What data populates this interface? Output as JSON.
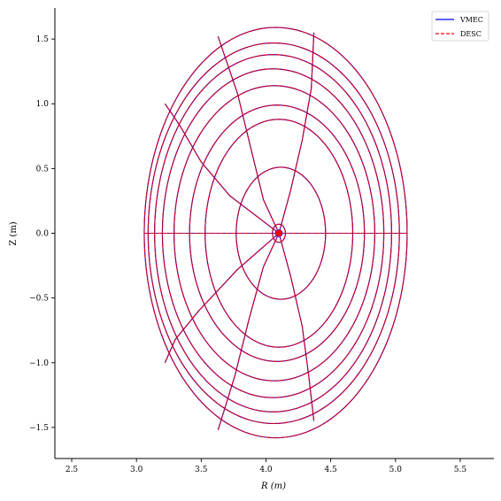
{
  "chart_data": {
    "type": "line",
    "title": "",
    "xlabel": "R (m)",
    "ylabel": "Z (m)",
    "xlim": [
      2.37,
      5.76
    ],
    "ylim": [
      -1.74,
      1.74
    ],
    "x_ticks": [
      2.5,
      3.0,
      3.5,
      4.0,
      4.5,
      5.0,
      5.5
    ],
    "y_ticks": [
      -1.5,
      -1.0,
      -0.5,
      0.0,
      0.5,
      1.0,
      1.5
    ],
    "x_tick_labels": [
      "2.5",
      "3.0",
      "3.5",
      "4.0",
      "4.5",
      "5.0",
      "5.5"
    ],
    "y_tick_labels": [
      "−1.5",
      "−1.0",
      "−0.5",
      "0.0",
      "0.5",
      "1.0",
      "1.5"
    ],
    "grid": false,
    "legend_position": "top-right",
    "legend": [
      {
        "name": "VMEC",
        "color": "#0000ff",
        "style": "solid"
      },
      {
        "name": "DESC",
        "color": "#ff0000",
        "style": "dashed"
      }
    ],
    "magnetic_axis": {
      "R": 4.1,
      "Z": 0.0
    },
    "flux_surfaces": [
      {
        "r_in": 3.06,
        "r_out": 5.09,
        "z_top": 1.59,
        "z_bot": -1.58
      },
      {
        "r_in": 3.09,
        "r_out": 5.03,
        "z_top": 1.47,
        "z_bot": -1.47
      },
      {
        "r_in": 3.14,
        "r_out": 4.97,
        "z_top": 1.38,
        "z_bot": -1.38
      },
      {
        "r_in": 3.2,
        "r_out": 4.91,
        "z_top": 1.27,
        "z_bot": -1.27
      },
      {
        "r_in": 3.29,
        "r_out": 4.84,
        "z_top": 1.14,
        "z_bot": -1.14
      },
      {
        "r_in": 3.41,
        "r_out": 4.76,
        "z_top": 0.99,
        "z_bot": -0.99
      },
      {
        "r_in": 3.53,
        "r_out": 4.67,
        "z_top": 0.88,
        "z_bot": -0.88
      },
      {
        "r_in": 3.77,
        "r_out": 4.46,
        "z_top": 0.51,
        "z_bot": -0.51
      },
      {
        "r_in": 4.05,
        "r_out": 4.15,
        "z_top": 0.07,
        "z_bot": -0.07
      }
    ],
    "poloidal_lines": [
      {
        "name": "theta-0",
        "points": [
          [
            4.1,
            0.0
          ],
          [
            5.09,
            0.0
          ]
        ]
      },
      {
        "name": "theta-pi",
        "points": [
          [
            4.1,
            0.0
          ],
          [
            3.06,
            0.0
          ]
        ]
      },
      {
        "name": "theta-upper-right",
        "points": [
          [
            4.1,
            0.0
          ],
          [
            4.19,
            0.33
          ],
          [
            4.28,
            0.72
          ],
          [
            4.35,
            1.12
          ],
          [
            4.37,
            1.55
          ]
        ]
      },
      {
        "name": "theta-upper-left-mid",
        "points": [
          [
            4.1,
            0.0
          ],
          [
            3.98,
            0.26
          ],
          [
            3.88,
            0.67
          ],
          [
            3.78,
            1.08
          ],
          [
            3.63,
            1.52
          ]
        ]
      },
      {
        "name": "theta-upper-left",
        "points": [
          [
            4.1,
            0.0
          ],
          [
            3.72,
            0.29
          ],
          [
            3.5,
            0.55
          ],
          [
            3.33,
            0.84
          ],
          [
            3.22,
            1.0
          ]
        ]
      },
      {
        "name": "theta-lower-left",
        "points": [
          [
            4.1,
            0.0
          ],
          [
            3.78,
            -0.28
          ],
          [
            3.48,
            -0.6
          ],
          [
            3.3,
            -0.82
          ],
          [
            3.22,
            -1.0
          ]
        ]
      },
      {
        "name": "theta-lower-left-mid",
        "points": [
          [
            4.1,
            0.0
          ],
          [
            3.98,
            -0.26
          ],
          [
            3.87,
            -0.66
          ],
          [
            3.76,
            -1.1
          ],
          [
            3.63,
            -1.52
          ]
        ]
      },
      {
        "name": "theta-lower-right",
        "points": [
          [
            4.1,
            0.0
          ],
          [
            4.19,
            -0.33
          ],
          [
            4.28,
            -0.72
          ],
          [
            4.33,
            -1.1
          ],
          [
            4.37,
            -1.45
          ]
        ]
      }
    ]
  }
}
